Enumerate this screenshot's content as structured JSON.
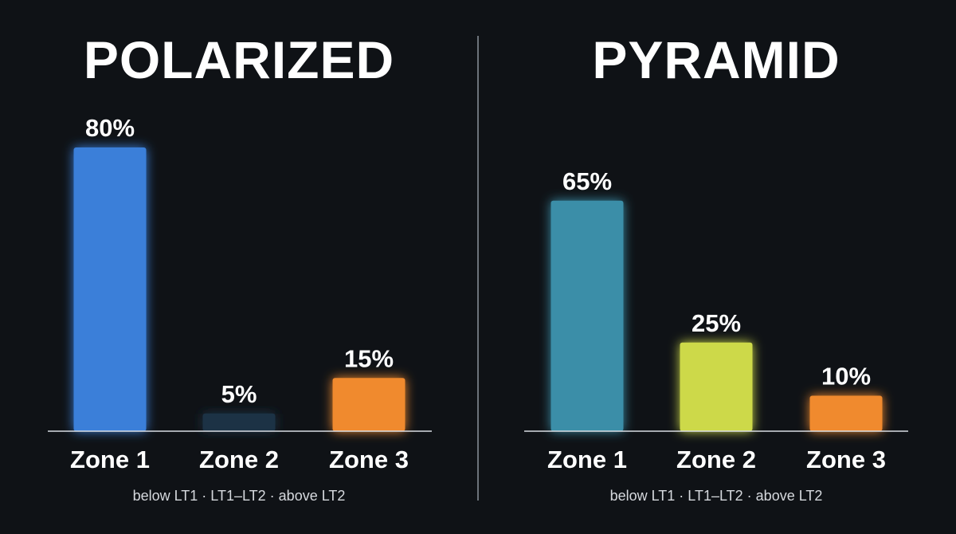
{
  "chart_data": [
    {
      "type": "bar",
      "title": "POLARIZED",
      "categories": [
        "Zone 1",
        "Zone 2",
        "Zone 3"
      ],
      "values": [
        80,
        5,
        15
      ],
      "value_labels": [
        "80%",
        "5%",
        "15%"
      ],
      "colors": [
        "#3a7fd9",
        "#1c3344",
        "#f08a2d"
      ],
      "caption": "below LT1 · LT1–LT2 · above LT2",
      "ylim": [
        0,
        100
      ],
      "grid": false
    },
    {
      "type": "bar",
      "title": "PYRAMID",
      "categories": [
        "Zone 1",
        "Zone 2",
        "Zone 3"
      ],
      "values": [
        65,
        25,
        10
      ],
      "value_labels": [
        "65%",
        "25%",
        "10%"
      ],
      "colors": [
        "#3a8ea8",
        "#cdd94a",
        "#f08a2d"
      ],
      "caption": "below LT1 · LT1–LT2 · above LT2",
      "ylim": [
        0,
        100
      ],
      "grid": false
    }
  ]
}
